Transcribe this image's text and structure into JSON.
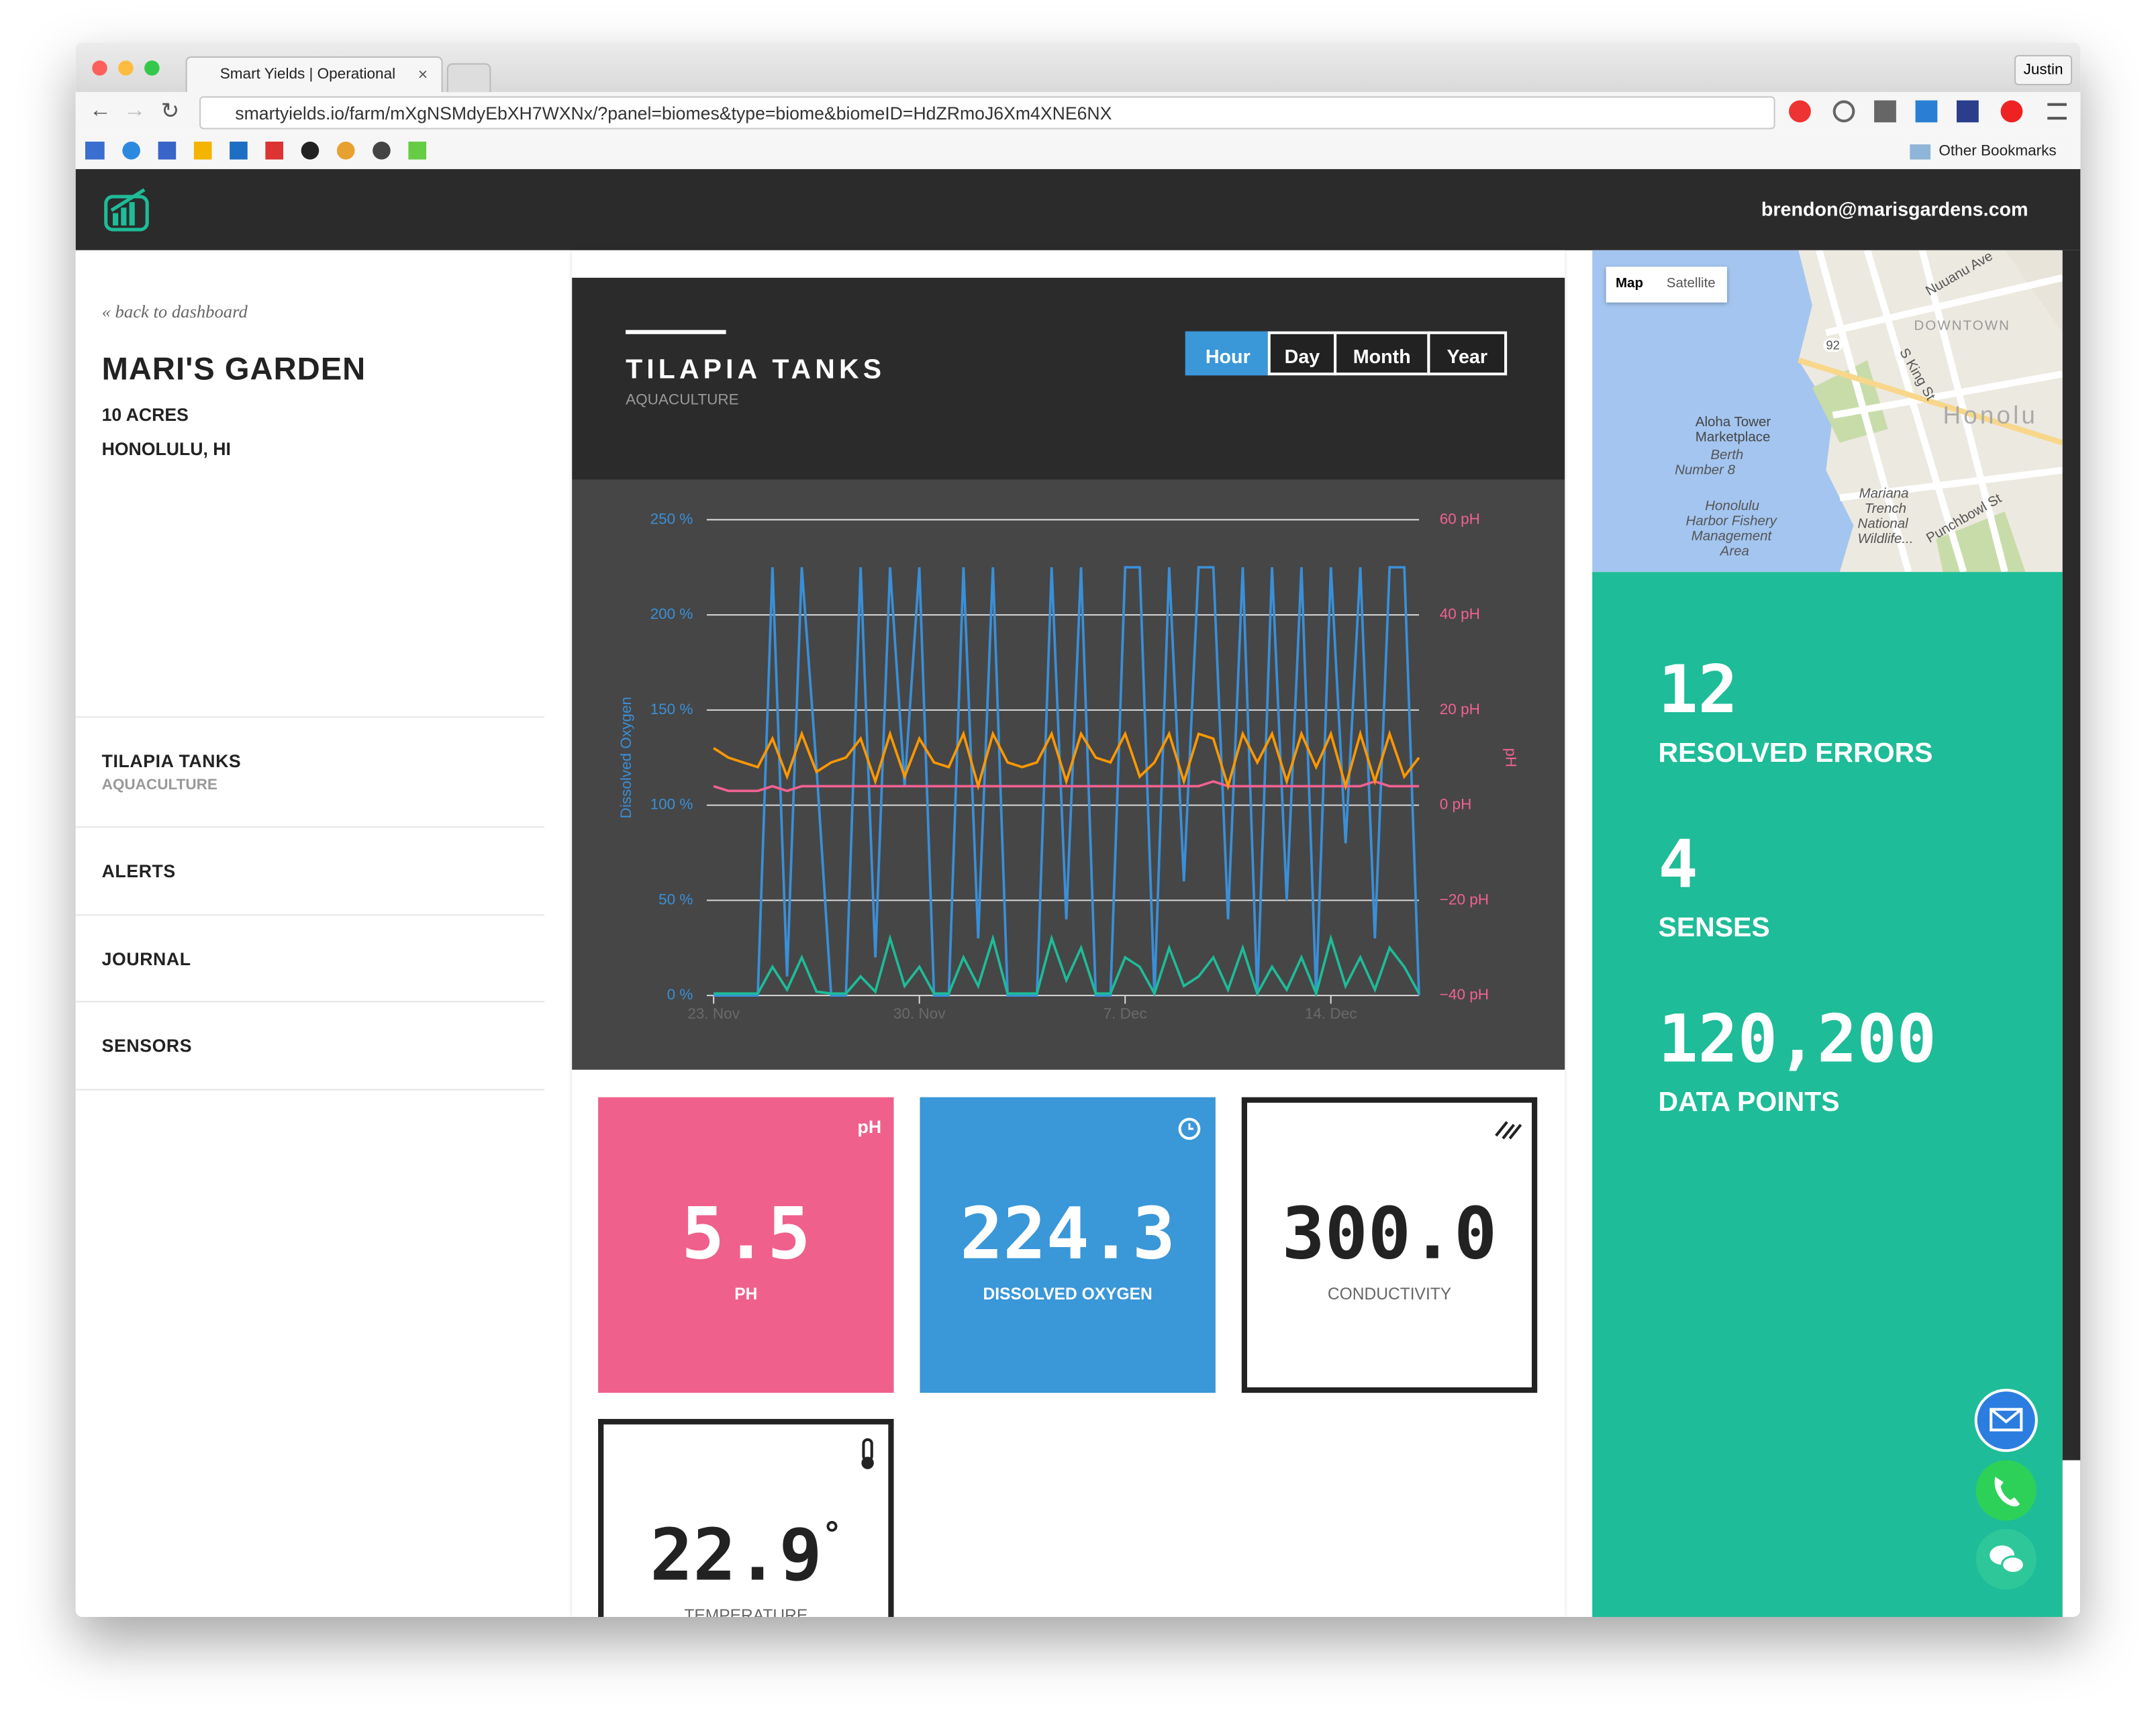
{
  "browser": {
    "tab_title": "Smart Yields | Operational",
    "profile": "Justin",
    "url": "smartyields.io/farm/mXgNSMdyEbXH7WXNx/?panel=biomes&type=biome&biomeID=HdZRmoJ6Xm4XNE6NX",
    "bookmarks_folder": "Other Bookmarks"
  },
  "header": {
    "user": "brendon@marisgardens.com"
  },
  "sidebar": {
    "back_link": "« back to dashboard",
    "farm_name": "MARI'S GARDEN",
    "acres": "10 ACRES",
    "location": "HONOLULU, HI",
    "nav": [
      {
        "label": "TILAPIA TANKS",
        "sublabel": "AQUACULTURE"
      },
      {
        "label": "ALERTS"
      },
      {
        "label": "JOURNAL"
      },
      {
        "label": "SENSORS"
      }
    ]
  },
  "panel": {
    "title": "TILAPIA TANKS",
    "subtitle": "AQUACULTURE",
    "ranges": [
      "Hour",
      "Day",
      "Month",
      "Year"
    ],
    "active_range": 0
  },
  "chart_data": {
    "type": "line",
    "y_label": "Dissolved Oxygen",
    "y2_label": "pH",
    "xlim": [
      0,
      24
    ],
    "xticks": [
      {
        "value": 0,
        "label": "23. Nov"
      },
      {
        "value": 7,
        "label": "30. Nov"
      },
      {
        "value": 14,
        "label": "7. Dec"
      },
      {
        "value": 21,
        "label": "14. Dec"
      }
    ],
    "ylim": [
      0,
      250
    ],
    "yticks": [
      {
        "value": 0,
        "label": "0 %"
      },
      {
        "value": 50,
        "label": "50 %"
      },
      {
        "value": 100,
        "label": "100 %"
      },
      {
        "value": 150,
        "label": "150 %"
      },
      {
        "value": 200,
        "label": "200 %"
      },
      {
        "value": 250,
        "label": "250 %"
      }
    ],
    "y2lim": [
      -40,
      60
    ],
    "y2ticks": [
      {
        "value": -40,
        "label": "−40 pH"
      },
      {
        "value": -20,
        "label": "−20 pH"
      },
      {
        "value": 0,
        "label": "0 pH"
      },
      {
        "value": 20,
        "label": "20 pH"
      },
      {
        "value": 40,
        "label": "40 pH"
      },
      {
        "value": 60,
        "label": "60 pH"
      }
    ],
    "grid": true,
    "x": [
      0,
      0.5,
      1,
      1.5,
      2,
      2.5,
      3,
      3.5,
      4,
      4.5,
      5,
      5.5,
      6,
      6.5,
      7,
      7.5,
      8,
      8.5,
      9,
      9.5,
      10,
      10.5,
      11,
      11.5,
      12,
      12.5,
      13,
      13.5,
      14,
      14.5,
      15,
      15.5,
      16,
      16.5,
      17,
      17.5,
      18,
      18.5,
      19,
      19.5,
      20,
      20.5,
      21,
      21.5,
      22,
      22.5,
      23,
      23.5,
      24
    ],
    "series": [
      {
        "color": "#3a8fd8",
        "values": [
          0,
          0,
          0,
          0,
          225,
          10,
          225,
          120,
          0,
          0,
          225,
          20,
          225,
          110,
          225,
          0,
          0,
          225,
          30,
          225,
          0,
          0,
          0,
          225,
          40,
          225,
          0,
          0,
          225,
          225,
          0,
          225,
          60,
          225,
          225,
          40,
          225,
          0,
          225,
          50,
          225,
          0,
          225,
          80,
          225,
          30,
          225,
          225,
          0
        ]
      },
      {
        "color": "#f06292",
        "axis": "y2",
        "values": [
          4,
          3,
          3,
          3,
          4,
          3,
          4,
          4,
          4,
          4,
          4,
          4,
          4,
          4,
          4,
          4,
          4,
          4,
          4,
          4,
          4,
          4,
          4,
          4,
          4,
          4,
          4,
          4,
          4,
          4,
          4,
          4,
          4,
          4,
          5,
          4,
          4,
          4,
          4,
          4,
          4,
          4,
          4,
          4,
          4,
          5,
          4,
          4,
          4
        ]
      },
      {
        "color": "#ff9800",
        "axis": "y2",
        "values": [
          12,
          10,
          9,
          8,
          14,
          6,
          15,
          7,
          9,
          10,
          14,
          5,
          15,
          6,
          14,
          9,
          8,
          15,
          4,
          15,
          9,
          8,
          9,
          15,
          5,
          15,
          10,
          9,
          15,
          6,
          9,
          15,
          5,
          15,
          14,
          4,
          15,
          9,
          15,
          5,
          15,
          8,
          15,
          4,
          15,
          5,
          15,
          6,
          10
        ]
      },
      {
        "color": "#1ebc98",
        "values": [
          1,
          1,
          1,
          1,
          15,
          3,
          20,
          2,
          1,
          1,
          10,
          2,
          30,
          5,
          15,
          1,
          1,
          20,
          5,
          30,
          1,
          1,
          1,
          30,
          8,
          25,
          1,
          1,
          20,
          15,
          1,
          25,
          5,
          10,
          20,
          3,
          25,
          1,
          15,
          3,
          20,
          1,
          30,
          5,
          20,
          3,
          25,
          15,
          1
        ]
      }
    ]
  },
  "tiles": [
    {
      "unit": "pH",
      "value": "5.5",
      "label": "PH"
    },
    {
      "value": "224.3",
      "label": "DISSOLVED OXYGEN"
    },
    {
      "value": "300.0",
      "label": "CONDUCTIVITY"
    },
    {
      "value": "22.9",
      "unit": "°",
      "label": "TEMPERATURE"
    }
  ],
  "map": {
    "buttons": [
      "Map",
      "Satellite"
    ],
    "labels": [
      "DOWNTOWN",
      "Honolu",
      "Aloha Tower",
      "Marketplace",
      "Berth",
      "Number 8",
      "Honolulu",
      "Harbor Fishery",
      "Management",
      "Area",
      "Mariana",
      "Trench",
      "National",
      "Wildlife...",
      "Punchbowl St",
      "S King St",
      "Nuuanu Ave",
      "92"
    ]
  },
  "stats": [
    {
      "value": "12",
      "label": "RESOLVED ERRORS"
    },
    {
      "value": "4",
      "label": "SENSES"
    },
    {
      "value": "120,200",
      "label": "DATA POINTS"
    }
  ]
}
